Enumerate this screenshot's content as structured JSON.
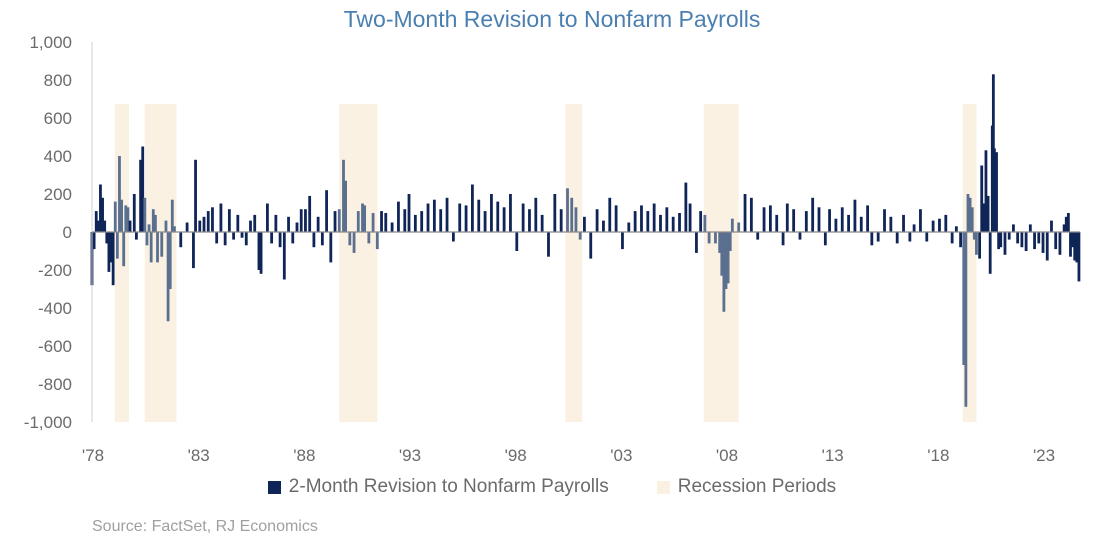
{
  "colors": {
    "bar_primary": "#0f2557",
    "bar_recession": "#5b6f8f",
    "recession_fill": "#fbf1e3",
    "axis": "#8a8a8a",
    "title": "#4a7fb0",
    "text": "#6b6b6b",
    "source": "#a0a0a0"
  },
  "chart_data": {
    "type": "bar",
    "title": "Two-Month Revision to Nonfarm Payrolls",
    "xlabel": "",
    "ylabel": "",
    "ylim": [
      -1000,
      1000
    ],
    "y_ticks": [
      -1000,
      -800,
      -600,
      -400,
      -200,
      0,
      200,
      400,
      600,
      800,
      1000
    ],
    "y_tick_labels": [
      "-1,000",
      "-800",
      "-600",
      "-400",
      "-200",
      "0",
      "200",
      "400",
      "600",
      "800",
      "1,000"
    ],
    "xlim": [
      1978.0,
      2024.75
    ],
    "x_ticks": [
      1978,
      1983,
      1988,
      1993,
      1998,
      2003,
      2008,
      2013,
      2018,
      2023
    ],
    "x_tick_labels": [
      "'78",
      "'83",
      "'88",
      "'93",
      "'98",
      "'03",
      "'08",
      "'13",
      "'18",
      "'23"
    ],
    "grid": false,
    "legend_position": "bottom",
    "legend": [
      "2-Month Revision to Nonfarm Payrolls",
      "Recession Periods"
    ],
    "recession_periods": [
      [
        1979.08,
        1979.75
      ],
      [
        1980.5,
        1982.0
      ],
      [
        1989.7,
        1991.5
      ],
      [
        2000.4,
        2001.2
      ],
      [
        2006.95,
        2008.6
      ],
      [
        2019.2,
        2019.85
      ]
    ],
    "series": [
      {
        "name": "2-Month Revision to Nonfarm Payrolls",
        "points": [
          [
            1978.0,
            -280
          ],
          [
            1978.1,
            -90
          ],
          [
            1978.2,
            110
          ],
          [
            1978.3,
            60
          ],
          [
            1978.4,
            250
          ],
          [
            1978.5,
            180
          ],
          [
            1978.6,
            60
          ],
          [
            1978.7,
            -60
          ],
          [
            1978.8,
            -210
          ],
          [
            1978.9,
            -160
          ],
          [
            1979.0,
            -280
          ],
          [
            1979.1,
            160
          ],
          [
            1979.2,
            -140
          ],
          [
            1979.3,
            400
          ],
          [
            1979.4,
            170
          ],
          [
            1979.5,
            -180
          ],
          [
            1979.6,
            140
          ],
          [
            1979.7,
            130
          ],
          [
            1979.8,
            60
          ],
          [
            1980.0,
            200
          ],
          [
            1980.1,
            -40
          ],
          [
            1980.3,
            380
          ],
          [
            1980.4,
            450
          ],
          [
            1980.5,
            180
          ],
          [
            1980.6,
            -70
          ],
          [
            1980.7,
            40
          ],
          [
            1980.8,
            -160
          ],
          [
            1980.9,
            120
          ],
          [
            1981.0,
            90
          ],
          [
            1981.1,
            -160
          ],
          [
            1981.3,
            -130
          ],
          [
            1981.5,
            60
          ],
          [
            1981.6,
            -470
          ],
          [
            1981.7,
            -300
          ],
          [
            1981.8,
            170
          ],
          [
            1981.9,
            30
          ],
          [
            1982.2,
            -80
          ],
          [
            1982.5,
            50
          ],
          [
            1982.8,
            -190
          ],
          [
            1982.9,
            380
          ],
          [
            1983.1,
            60
          ],
          [
            1983.3,
            80
          ],
          [
            1983.5,
            110
          ],
          [
            1983.7,
            130
          ],
          [
            1983.9,
            -60
          ],
          [
            1984.1,
            150
          ],
          [
            1984.3,
            -70
          ],
          [
            1984.5,
            120
          ],
          [
            1984.7,
            -40
          ],
          [
            1984.9,
            90
          ],
          [
            1985.1,
            -30
          ],
          [
            1985.3,
            -70
          ],
          [
            1985.5,
            60
          ],
          [
            1985.7,
            90
          ],
          [
            1985.9,
            -200
          ],
          [
            1986.0,
            -220
          ],
          [
            1986.3,
            150
          ],
          [
            1986.5,
            -60
          ],
          [
            1986.7,
            90
          ],
          [
            1986.9,
            -80
          ],
          [
            1987.1,
            -250
          ],
          [
            1987.3,
            80
          ],
          [
            1987.5,
            -60
          ],
          [
            1987.7,
            50
          ],
          [
            1987.9,
            120
          ],
          [
            1988.1,
            120
          ],
          [
            1988.3,
            190
          ],
          [
            1988.5,
            -80
          ],
          [
            1988.7,
            80
          ],
          [
            1988.9,
            -70
          ],
          [
            1989.1,
            220
          ],
          [
            1989.3,
            -160
          ],
          [
            1989.5,
            110
          ],
          [
            1989.7,
            120
          ],
          [
            1989.9,
            380
          ],
          [
            1990.0,
            270
          ],
          [
            1990.2,
            -70
          ],
          [
            1990.4,
            -110
          ],
          [
            1990.6,
            110
          ],
          [
            1990.8,
            150
          ],
          [
            1990.9,
            140
          ],
          [
            1991.1,
            -60
          ],
          [
            1991.3,
            100
          ],
          [
            1991.5,
            -90
          ],
          [
            1991.7,
            110
          ],
          [
            1991.9,
            100
          ],
          [
            1992.2,
            50
          ],
          [
            1992.5,
            160
          ],
          [
            1992.8,
            120
          ],
          [
            1993.0,
            200
          ],
          [
            1993.3,
            90
          ],
          [
            1993.6,
            110
          ],
          [
            1993.9,
            150
          ],
          [
            1994.2,
            170
          ],
          [
            1994.5,
            120
          ],
          [
            1994.8,
            180
          ],
          [
            1995.1,
            -50
          ],
          [
            1995.4,
            150
          ],
          [
            1995.7,
            140
          ],
          [
            1996.0,
            250
          ],
          [
            1996.3,
            170
          ],
          [
            1996.6,
            110
          ],
          [
            1996.9,
            200
          ],
          [
            1997.2,
            160
          ],
          [
            1997.5,
            130
          ],
          [
            1997.8,
            200
          ],
          [
            1998.1,
            -100
          ],
          [
            1998.4,
            150
          ],
          [
            1998.7,
            120
          ],
          [
            1999.0,
            180
          ],
          [
            1999.3,
            90
          ],
          [
            1999.6,
            -130
          ],
          [
            1999.9,
            200
          ],
          [
            2000.2,
            120
          ],
          [
            2000.5,
            230
          ],
          [
            2000.7,
            180
          ],
          [
            2000.9,
            130
          ],
          [
            2001.1,
            -40
          ],
          [
            2001.3,
            80
          ],
          [
            2001.6,
            -140
          ],
          [
            2001.9,
            120
          ],
          [
            2002.2,
            60
          ],
          [
            2002.5,
            180
          ],
          [
            2002.8,
            140
          ],
          [
            2003.1,
            -90
          ],
          [
            2003.4,
            50
          ],
          [
            2003.7,
            110
          ],
          [
            2004.0,
            140
          ],
          [
            2004.3,
            110
          ],
          [
            2004.6,
            150
          ],
          [
            2004.9,
            90
          ],
          [
            2005.2,
            130
          ],
          [
            2005.5,
            80
          ],
          [
            2005.8,
            100
          ],
          [
            2006.1,
            260
          ],
          [
            2006.3,
            150
          ],
          [
            2006.6,
            -110
          ],
          [
            2006.8,
            110
          ],
          [
            2007.0,
            90
          ],
          [
            2007.2,
            -60
          ],
          [
            2007.5,
            -60
          ],
          [
            2007.7,
            -110
          ],
          [
            2007.8,
            -230
          ],
          [
            2007.9,
            -420
          ],
          [
            2008.0,
            -300
          ],
          [
            2008.1,
            -270
          ],
          [
            2008.2,
            -100
          ],
          [
            2008.3,
            70
          ],
          [
            2008.6,
            50
          ],
          [
            2008.9,
            200
          ],
          [
            2009.2,
            180
          ],
          [
            2009.5,
            -40
          ],
          [
            2009.8,
            130
          ],
          [
            2010.1,
            140
          ],
          [
            2010.4,
            90
          ],
          [
            2010.7,
            -70
          ],
          [
            2010.9,
            150
          ],
          [
            2011.2,
            120
          ],
          [
            2011.5,
            -40
          ],
          [
            2011.8,
            110
          ],
          [
            2012.1,
            180
          ],
          [
            2012.4,
            130
          ],
          [
            2012.7,
            -70
          ],
          [
            2012.9,
            120
          ],
          [
            2013.2,
            70
          ],
          [
            2013.5,
            130
          ],
          [
            2013.8,
            90
          ],
          [
            2014.1,
            170
          ],
          [
            2014.4,
            80
          ],
          [
            2014.7,
            140
          ],
          [
            2014.9,
            -70
          ],
          [
            2015.2,
            -50
          ],
          [
            2015.5,
            120
          ],
          [
            2015.8,
            80
          ],
          [
            2016.1,
            -60
          ],
          [
            2016.4,
            90
          ],
          [
            2016.7,
            -50
          ],
          [
            2016.9,
            40
          ],
          [
            2017.2,
            120
          ],
          [
            2017.5,
            -50
          ],
          [
            2017.8,
            60
          ],
          [
            2018.1,
            70
          ],
          [
            2018.4,
            90
          ],
          [
            2018.7,
            -60
          ],
          [
            2018.9,
            30
          ],
          [
            2019.1,
            -80
          ],
          [
            2019.25,
            -700
          ],
          [
            2019.35,
            -920
          ],
          [
            2019.45,
            200
          ],
          [
            2019.55,
            180
          ],
          [
            2019.65,
            130
          ],
          [
            2019.75,
            -40
          ],
          [
            2019.85,
            -120
          ],
          [
            2020.0,
            -140
          ],
          [
            2020.1,
            350
          ],
          [
            2020.2,
            150
          ],
          [
            2020.3,
            430
          ],
          [
            2020.4,
            190
          ],
          [
            2020.5,
            -220
          ],
          [
            2020.6,
            560
          ],
          [
            2020.65,
            830
          ],
          [
            2020.7,
            440
          ],
          [
            2020.8,
            420
          ],
          [
            2020.9,
            -90
          ],
          [
            2021.0,
            -80
          ],
          [
            2021.2,
            -120
          ],
          [
            2021.4,
            -40
          ],
          [
            2021.6,
            40
          ],
          [
            2021.8,
            -60
          ],
          [
            2022.0,
            -80
          ],
          [
            2022.2,
            -100
          ],
          [
            2022.4,
            40
          ],
          [
            2022.6,
            -90
          ],
          [
            2022.8,
            -60
          ],
          [
            2023.0,
            -110
          ],
          [
            2023.2,
            -150
          ],
          [
            2023.4,
            60
          ],
          [
            2023.6,
            -90
          ],
          [
            2023.8,
            -120
          ],
          [
            2024.0,
            40
          ],
          [
            2024.1,
            80
          ],
          [
            2024.2,
            100
          ],
          [
            2024.3,
            -130
          ],
          [
            2024.4,
            -80
          ],
          [
            2024.5,
            -150
          ],
          [
            2024.6,
            -160
          ],
          [
            2024.7,
            -260
          ]
        ]
      }
    ]
  },
  "footer": {
    "source": "Source: FactSet, RJ Economics"
  }
}
